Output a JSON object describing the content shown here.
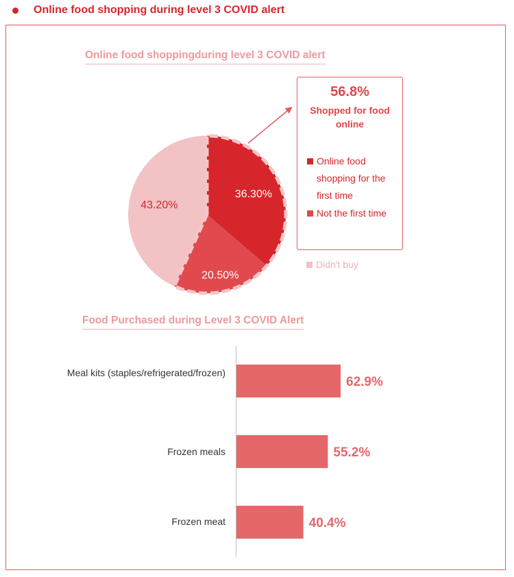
{
  "header": {
    "title": "Online food shopping during level 3 COVID alert"
  },
  "chart_data": [
    {
      "type": "pie",
      "title": "Online food shoppingduring level 3 COVID alert",
      "slices": [
        {
          "label": "Online food shopping for the first time",
          "value": 36.3,
          "display": "36.30%",
          "color": "#d6262b"
        },
        {
          "label": "Not the first time",
          "value": 20.5,
          "display": "20.50%",
          "color": "#e04a4e"
        },
        {
          "label": "Didn't buy",
          "value": 43.2,
          "display": "43.20%",
          "color": "#f2c2c4"
        }
      ],
      "callout": {
        "value": "56.8%",
        "label": "Shopped for food online"
      }
    },
    {
      "type": "bar",
      "orientation": "horizontal",
      "title": "Food Purchased during Level 3 COVID Alert",
      "categories": [
        "Meal kits (staples/refrigerated/frozen)",
        "Frozen meals",
        "Frozen meat"
      ],
      "values": [
        62.9,
        55.2,
        40.4
      ],
      "value_labels": [
        "62.9%",
        "55.2%",
        "40.4%"
      ],
      "color": "#e66769",
      "label_color": "#e66769"
    }
  ]
}
